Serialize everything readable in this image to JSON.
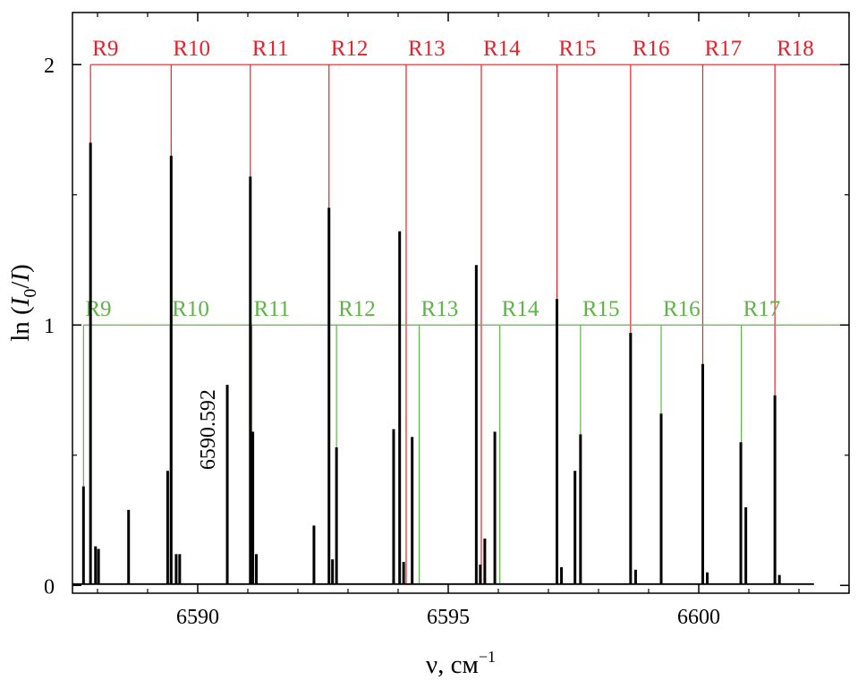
{
  "chart_data": {
    "type": "line",
    "xlabel": "ν, см",
    "xlabel_sup": "−1",
    "ylabel_prefix": "ln (",
    "ylabel_I0": "I",
    "ylabel_I0_sub": "0",
    "ylabel_slash": "/",
    "ylabel_I": "I",
    "ylabel_suffix": ")",
    "xlim": [
      6587.5,
      6603.0
    ],
    "ylim": [
      -0.03,
      2.2
    ],
    "xticks": [
      6590,
      6595,
      6600
    ],
    "xtick_labels": [
      "6590",
      "6595",
      "6600"
    ],
    "yticks": [
      0,
      1,
      2
    ],
    "ytick_labels": [
      "0",
      "1",
      "2"
    ],
    "grid": false,
    "colors": {
      "spectrum": "#000000",
      "red_series": "#e8202a",
      "green_series": "#5db446"
    },
    "annotation": {
      "text": "6590.592",
      "x": 6590.592
    },
    "red_series": {
      "level": 2.0,
      "labels": [
        "R9",
        "R10",
        "R11",
        "R12",
        "R13",
        "R14",
        "R15",
        "R16",
        "R17",
        "R18"
      ],
      "positions": [
        6587.86,
        6589.47,
        6591.05,
        6592.62,
        6594.16,
        6595.66,
        6597.17,
        6598.64,
        6600.08,
        6601.52
      ]
    },
    "green_series": {
      "level": 1.0,
      "labels": [
        "R9",
        "R10",
        "R11",
        "R12",
        "R13",
        "R14",
        "R15",
        "R16",
        "R17"
      ],
      "positions": [
        6587.72,
        6589.45,
        6591.08,
        6592.77,
        6594.42,
        6596.03,
        6597.64,
        6599.25,
        6600.85
      ]
    },
    "peaks": [
      {
        "x": 6587.72,
        "y": 0.38
      },
      {
        "x": 6587.86,
        "y": 1.7
      },
      {
        "x": 6587.96,
        "y": 0.15
      },
      {
        "x": 6588.02,
        "y": 0.14
      },
      {
        "x": 6588.62,
        "y": 0.29
      },
      {
        "x": 6589.4,
        "y": 0.44
      },
      {
        "x": 6589.47,
        "y": 1.65
      },
      {
        "x": 6589.57,
        "y": 0.12
      },
      {
        "x": 6589.64,
        "y": 0.12
      },
      {
        "x": 6590.59,
        "y": 0.77
      },
      {
        "x": 6591.05,
        "y": 1.57
      },
      {
        "x": 6591.1,
        "y": 0.59
      },
      {
        "x": 6591.17,
        "y": 0.12
      },
      {
        "x": 6592.32,
        "y": 0.23
      },
      {
        "x": 6592.62,
        "y": 1.45
      },
      {
        "x": 6592.69,
        "y": 0.1
      },
      {
        "x": 6592.77,
        "y": 0.53
      },
      {
        "x": 6593.91,
        "y": 0.6
      },
      {
        "x": 6594.03,
        "y": 1.36
      },
      {
        "x": 6594.11,
        "y": 0.09
      },
      {
        "x": 6594.28,
        "y": 0.57
      },
      {
        "x": 6595.56,
        "y": 1.23
      },
      {
        "x": 6595.64,
        "y": 0.08
      },
      {
        "x": 6595.73,
        "y": 0.18
      },
      {
        "x": 6595.93,
        "y": 0.59
      },
      {
        "x": 6597.17,
        "y": 1.1
      },
      {
        "x": 6597.26,
        "y": 0.07
      },
      {
        "x": 6597.53,
        "y": 0.44
      },
      {
        "x": 6597.64,
        "y": 0.58
      },
      {
        "x": 6598.64,
        "y": 0.97
      },
      {
        "x": 6598.74,
        "y": 0.06
      },
      {
        "x": 6599.25,
        "y": 0.66
      },
      {
        "x": 6600.08,
        "y": 0.85
      },
      {
        "x": 6600.17,
        "y": 0.05
      },
      {
        "x": 6600.84,
        "y": 0.55
      },
      {
        "x": 6600.94,
        "y": 0.3
      },
      {
        "x": 6601.52,
        "y": 0.73
      },
      {
        "x": 6601.61,
        "y": 0.04
      }
    ]
  }
}
